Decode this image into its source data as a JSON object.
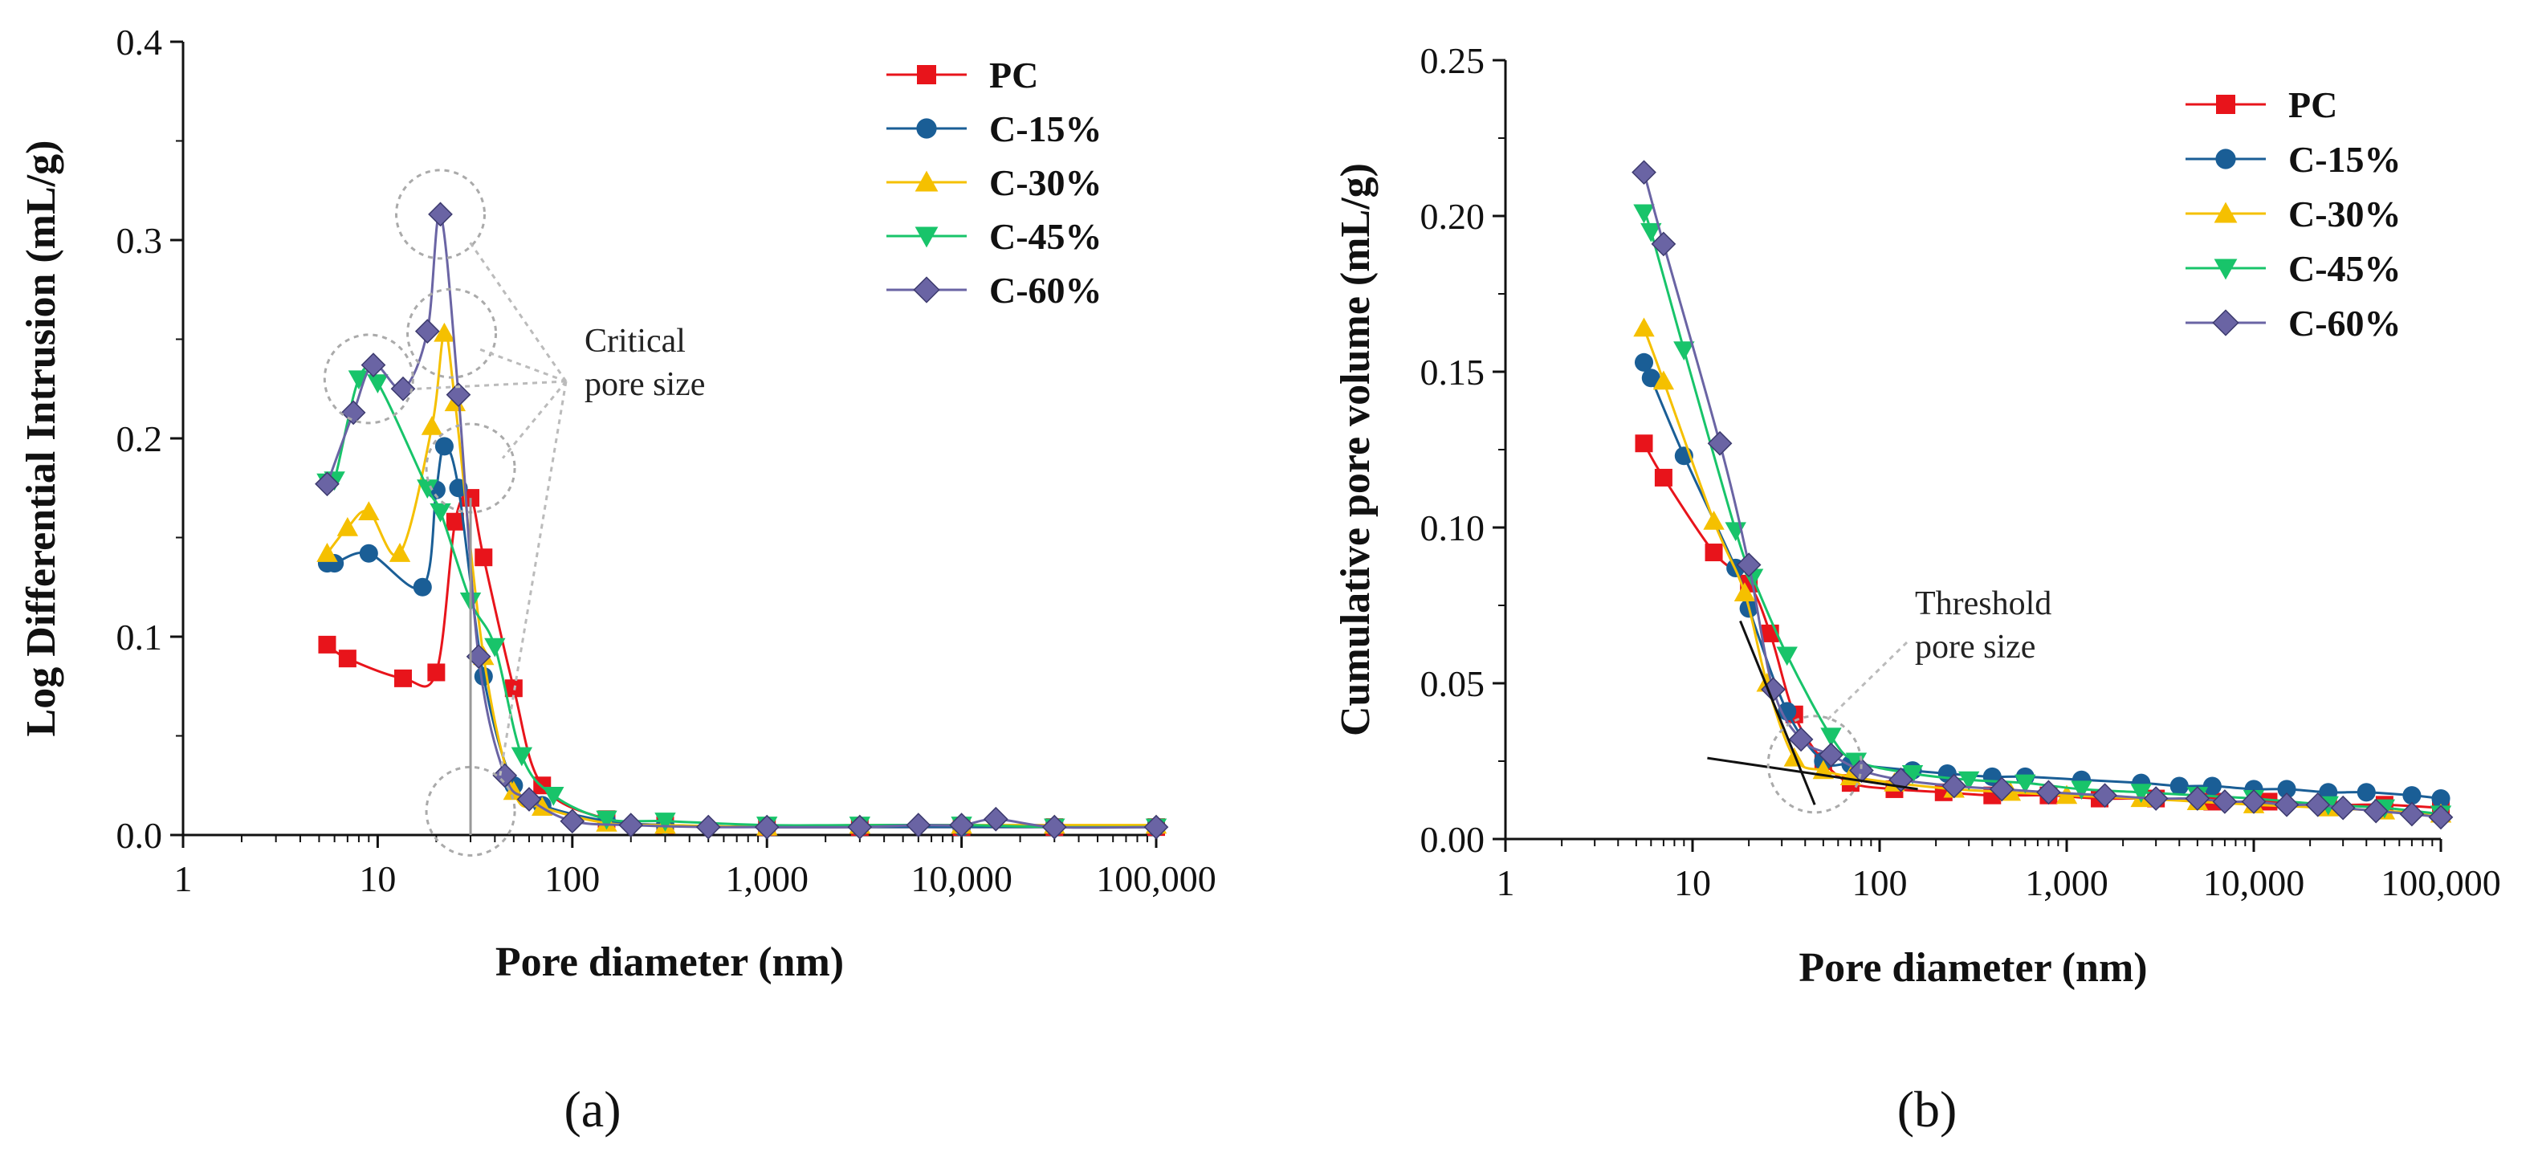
{
  "panels": [
    {
      "label": "(a)",
      "chart": "log_diff"
    },
    {
      "label": "(b)",
      "chart": "cum_vol"
    }
  ],
  "legend": [
    {
      "name": "PC",
      "color": "#e8141b",
      "marker": "square"
    },
    {
      "name": "C-15%",
      "color": "#1a5e96",
      "marker": "circle"
    },
    {
      "name": "C-30%",
      "color": "#f5c000",
      "marker": "triangle-up"
    },
    {
      "name": "C-45%",
      "color": "#18c46a",
      "marker": "triangle-down"
    },
    {
      "name": "C-60%",
      "color": "#6a64a4",
      "marker": "diamond"
    }
  ],
  "chart_data": [
    {
      "id": "log_diff",
      "type": "line",
      "xscale": "log",
      "xlim": [
        1,
        100000
      ],
      "ylim": [
        0,
        0.4
      ],
      "xticks": [
        1,
        10,
        100,
        1000,
        10000,
        100000
      ],
      "xtick_labels": [
        "1",
        "10",
        "100",
        "1,000",
        "10,000",
        "100,000"
      ],
      "yticks": [
        0,
        0.1,
        0.2,
        0.3,
        0.4
      ],
      "ytick_labels": [
        "0.0",
        "0.1",
        "0.2",
        "0.3",
        "0.4"
      ],
      "xlabel": "Pore diameter (nm)",
      "ylabel": "Log Differential Intrusion (mL/g)",
      "annotation": "Critical\npore size",
      "series": [
        {
          "name": "PC",
          "x": [
            5.5,
            7,
            13.5,
            20,
            25,
            30,
            35,
            50,
            70,
            150,
            300,
            1000,
            3000,
            10000,
            30000,
            100000
          ],
          "y": [
            0.096,
            0.089,
            0.079,
            0.082,
            0.158,
            0.17,
            0.14,
            0.074,
            0.025,
            0.008,
            0.005,
            0.004,
            0.004,
            0.004,
            0.004,
            0.004
          ]
        },
        {
          "name": "C-15%",
          "x": [
            5.5,
            6,
            9,
            17,
            20,
            22,
            26,
            35,
            50,
            70,
            150,
            300,
            1000,
            3000,
            10000,
            30000,
            100000
          ],
          "y": [
            0.137,
            0.137,
            0.142,
            0.125,
            0.174,
            0.196,
            0.175,
            0.08,
            0.025,
            0.015,
            0.007,
            0.005,
            0.004,
            0.004,
            0.004,
            0.004,
            0.004
          ]
        },
        {
          "name": "C-30%",
          "x": [
            5.5,
            7,
            9,
            13,
            19,
            22,
            25,
            35,
            50,
            70,
            150,
            300,
            1000,
            3000,
            10000,
            30000,
            100000
          ],
          "y": [
            0.142,
            0.155,
            0.163,
            0.142,
            0.206,
            0.253,
            0.218,
            0.09,
            0.022,
            0.014,
            0.006,
            0.005,
            0.004,
            0.005,
            0.005,
            0.005,
            0.005
          ]
        },
        {
          "name": "C-45%",
          "x": [
            5.5,
            6,
            8,
            10,
            18,
            21,
            30,
            40,
            55,
            80,
            150,
            300,
            1000,
            3000,
            10000,
            30000,
            100000
          ],
          "y": [
            0.178,
            0.179,
            0.23,
            0.228,
            0.175,
            0.163,
            0.118,
            0.095,
            0.04,
            0.02,
            0.008,
            0.007,
            0.005,
            0.005,
            0.005,
            0.004,
            0.004
          ]
        },
        {
          "name": "C-60%",
          "x": [
            5.5,
            7.5,
            9.5,
            13.5,
            18,
            21,
            26,
            33,
            45,
            60,
            100,
            200,
            500,
            1000,
            3000,
            6000,
            10000,
            15000,
            30000,
            100000
          ],
          "y": [
            0.177,
            0.213,
            0.237,
            0.225,
            0.254,
            0.313,
            0.222,
            0.09,
            0.03,
            0.018,
            0.007,
            0.005,
            0.004,
            0.004,
            0.004,
            0.005,
            0.005,
            0.008,
            0.004,
            0.004
          ]
        }
      ]
    },
    {
      "id": "cum_vol",
      "type": "line",
      "xscale": "log",
      "xlim": [
        1,
        100000
      ],
      "ylim": [
        0,
        0.25
      ],
      "xticks": [
        1,
        10,
        100,
        1000,
        10000,
        100000
      ],
      "xtick_labels": [
        "1",
        "10",
        "100",
        "1,000",
        "10,000",
        "100,000"
      ],
      "yticks": [
        0,
        0.05,
        0.1,
        0.15,
        0.2,
        0.25
      ],
      "ytick_labels": [
        "0.00",
        "0.05",
        "0.10",
        "0.15",
        "0.20",
        "0.25"
      ],
      "xlabel": "Pore diameter (nm)",
      "ylabel": "Cumulative pore volume (mL/g)",
      "annotation": "Threshold\npore size",
      "series": [
        {
          "name": "PC",
          "x": [
            5.5,
            7,
            13,
            20,
            26,
            35,
            50,
            70,
            120,
            220,
            400,
            800,
            1500,
            3000,
            6000,
            12000,
            25000,
            50000,
            100000
          ],
          "y": [
            0.127,
            0.116,
            0.092,
            0.082,
            0.066,
            0.04,
            0.025,
            0.018,
            0.016,
            0.015,
            0.014,
            0.014,
            0.013,
            0.013,
            0.012,
            0.012,
            0.011,
            0.011,
            0.01
          ]
        },
        {
          "name": "C-15%",
          "x": [
            5.5,
            6,
            9,
            17,
            20,
            32,
            50,
            70,
            150,
            230,
            400,
            600,
            1200,
            2500,
            4000,
            6000,
            10000,
            15000,
            25000,
            40000,
            70000,
            100000
          ],
          "y": [
            0.153,
            0.148,
            0.123,
            0.087,
            0.074,
            0.041,
            0.025,
            0.024,
            0.022,
            0.021,
            0.02,
            0.02,
            0.019,
            0.018,
            0.017,
            0.017,
            0.016,
            0.016,
            0.015,
            0.015,
            0.014,
            0.013
          ]
        },
        {
          "name": "C-30%",
          "x": [
            5.5,
            7,
            13,
            19,
            25,
            35,
            50,
            70,
            120,
            250,
            500,
            1000,
            2500,
            5000,
            10000,
            25000,
            50000,
            100000
          ],
          "y": [
            0.164,
            0.147,
            0.102,
            0.079,
            0.05,
            0.026,
            0.022,
            0.02,
            0.018,
            0.016,
            0.015,
            0.014,
            0.013,
            0.012,
            0.011,
            0.01,
            0.009,
            0.008
          ]
        },
        {
          "name": "C-45%",
          "x": [
            5.5,
            6,
            9,
            17,
            21,
            32,
            55,
            75,
            150,
            300,
            600,
            1200,
            2500,
            5000,
            10000,
            25000,
            50000,
            100000
          ],
          "y": [
            0.201,
            0.195,
            0.157,
            0.099,
            0.084,
            0.059,
            0.033,
            0.025,
            0.021,
            0.019,
            0.018,
            0.016,
            0.015,
            0.014,
            0.013,
            0.011,
            0.01,
            0.008
          ]
        },
        {
          "name": "C-60%",
          "x": [
            5.5,
            7,
            14,
            20,
            27,
            38,
            55,
            80,
            130,
            250,
            450,
            800,
            1600,
            3000,
            5000,
            7000,
            10000,
            15000,
            22000,
            30000,
            45000,
            70000,
            100000
          ],
          "y": [
            0.214,
            0.191,
            0.127,
            0.088,
            0.048,
            0.032,
            0.027,
            0.022,
            0.019,
            0.017,
            0.016,
            0.015,
            0.014,
            0.013,
            0.013,
            0.012,
            0.012,
            0.011,
            0.011,
            0.01,
            0.009,
            0.008,
            0.007
          ]
        }
      ]
    }
  ]
}
